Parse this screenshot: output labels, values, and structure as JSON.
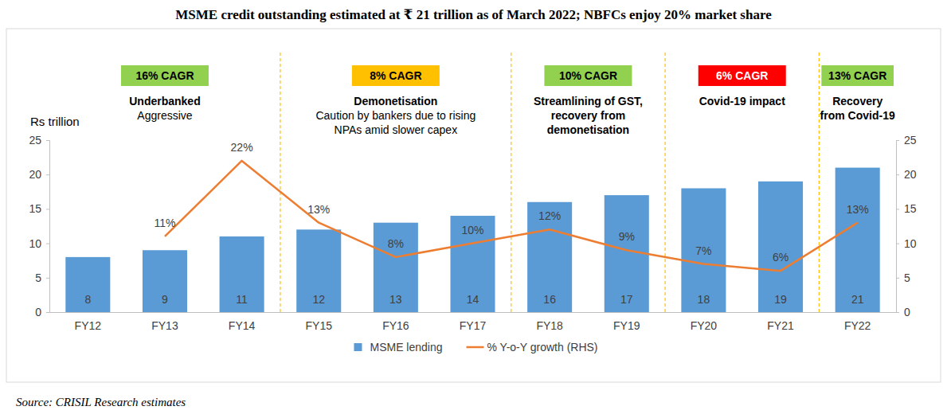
{
  "chart_data": {
    "type": "bar",
    "title": "MSME credit outstanding estimated at ₹ 21 trillion as of March 2022; NBFCs enjoy 20% market share",
    "source": "Source: CRISIL Research estimates",
    "y_label": "Rs trillion",
    "categories": [
      "FY12",
      "FY13",
      "FY14",
      "FY15",
      "FY16",
      "FY17",
      "FY18",
      "FY19",
      "FY20",
      "FY21",
      "FY22"
    ],
    "series": [
      {
        "name": "MSME lending",
        "type": "bar",
        "color": "#5b9bd5",
        "data_labels": true,
        "values": [
          8,
          9,
          11,
          12,
          13,
          14,
          16,
          17,
          18,
          19,
          21
        ]
      },
      {
        "name": "% Y-o-Y growth (RHS)",
        "type": "line",
        "color": "#ed7d31",
        "axis": "y2",
        "data_labels": true,
        "values": [
          null,
          11,
          22,
          13,
          8,
          10,
          12,
          9,
          7,
          6,
          13
        ],
        "value_labels": [
          null,
          "11%",
          "22%",
          "13%",
          "8%",
          "10%",
          "12%",
          "9%",
          "7%",
          "6%",
          "13%"
        ]
      }
    ],
    "ylim": [
      0,
      25
    ],
    "yticks": [
      0,
      5,
      10,
      15,
      20,
      25
    ],
    "y2lim": [
      0,
      25
    ],
    "y2ticks": [
      0,
      5,
      10,
      15,
      20,
      25
    ],
    "legend": "bottom",
    "annotations": [
      {
        "label": "16% CAGR",
        "color": "#92d050",
        "title": [
          "Underbanked"
        ],
        "text": [
          "Aggressive"
        ]
      },
      {
        "label": "8% CAGR",
        "color": "#ffc000",
        "title": [
          "Demonetisation"
        ],
        "text": [
          "Caution by bankers due to rising",
          "NPAs amid slower capex"
        ]
      },
      {
        "label": "10% CAGR",
        "color": "#92d050",
        "title": [
          "Streamlining of GST,",
          "recovery from",
          "demonetisation"
        ]
      },
      {
        "label": "6% CAGR",
        "color": "#ff0000",
        "title": [
          "Covid-19 impact"
        ]
      },
      {
        "label": "13% CAGR",
        "color": "#92d050",
        "title": [
          "Recovery",
          "from Covid-19"
        ]
      }
    ]
  }
}
